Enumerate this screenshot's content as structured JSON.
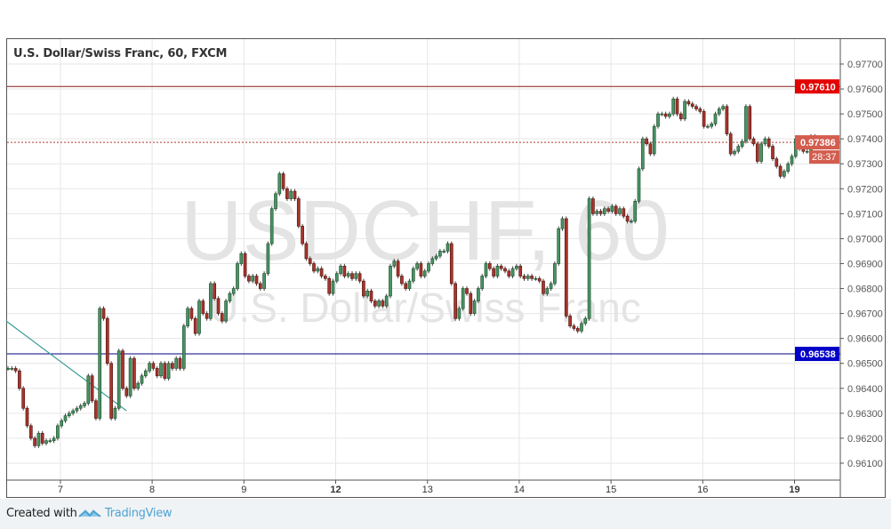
{
  "header": {
    "title": "U.S. Dollar/Swiss Franc, 60, FXCM"
  },
  "watermark": {
    "symbol": "USDCHF, 60",
    "name": "U.S. Dollar/Swiss Franc"
  },
  "footer": {
    "created_with": "Created with",
    "brand": "TradingView",
    "brand_color": "#4fa3d1"
  },
  "chart_data": {
    "type": "candlestick",
    "interval": "60",
    "ylim": [
      0.9605,
      0.9778
    ],
    "yticks": [
      "0.97700",
      "0.97600",
      "0.97500",
      "0.97400",
      "0.97300",
      "0.97200",
      "0.97100",
      "0.97000",
      "0.96900",
      "0.96800",
      "0.96700",
      "0.96600",
      "0.96500",
      "0.96400",
      "0.96300",
      "0.96200",
      "0.96100"
    ],
    "xticks": [
      "7",
      "8",
      "9",
      "12",
      "13",
      "14",
      "15",
      "16",
      "19"
    ],
    "grid": true,
    "first_open": 0.9648,
    "closes": [
      0.9648,
      0.9648,
      0.9647,
      0.964,
      0.9632,
      0.9625,
      0.962,
      0.9617,
      0.9622,
      0.9618,
      0.9619,
      0.9619,
      0.962,
      0.9625,
      0.9627,
      0.9629,
      0.963,
      0.9631,
      0.9632,
      0.9633,
      0.9634,
      0.9645,
      0.9635,
      0.9628,
      0.9672,
      0.9668,
      0.965,
      0.9628,
      0.9632,
      0.9655,
      0.964,
      0.9637,
      0.9652,
      0.964,
      0.9642,
      0.9645,
      0.9647,
      0.965,
      0.9648,
      0.9645,
      0.965,
      0.9644,
      0.965,
      0.9648,
      0.9652,
      0.9648,
      0.9665,
      0.9672,
      0.9668,
      0.9662,
      0.9675,
      0.967,
      0.9668,
      0.9682,
      0.9676,
      0.967,
      0.9667,
      0.9675,
      0.9678,
      0.968,
      0.969,
      0.9694,
      0.9685,
      0.9683,
      0.9685,
      0.9682,
      0.968,
      0.9686,
      0.9698,
      0.9712,
      0.9718,
      0.9726,
      0.972,
      0.9716,
      0.9719,
      0.9716,
      0.9705,
      0.9698,
      0.9692,
      0.969,
      0.9687,
      0.9688,
      0.9685,
      0.9684,
      0.9678,
      0.9683,
      0.9686,
      0.9689,
      0.9685,
      0.9686,
      0.9684,
      0.9686,
      0.9683,
      0.9677,
      0.9679,
      0.9675,
      0.9673,
      0.9675,
      0.9673,
      0.9677,
      0.9689,
      0.9691,
      0.9685,
      0.9682,
      0.968,
      0.9683,
      0.9688,
      0.969,
      0.9685,
      0.9687,
      0.969,
      0.9692,
      0.9693,
      0.9695,
      0.9695,
      0.9698,
      0.9682,
      0.9668,
      0.9672,
      0.968,
      0.9678,
      0.967,
      0.9675,
      0.968,
      0.9685,
      0.969,
      0.9688,
      0.9685,
      0.9689,
      0.9688,
      0.9687,
      0.9685,
      0.9688,
      0.9689,
      0.9685,
      0.9684,
      0.9685,
      0.9684,
      0.9684,
      0.9683,
      0.9678,
      0.968,
      0.9682,
      0.969,
      0.9704,
      0.9708,
      0.9669,
      0.9665,
      0.9664,
      0.9663,
      0.9666,
      0.9668,
      0.9716,
      0.971,
      0.9711,
      0.971,
      0.9712,
      0.9711,
      0.9713,
      0.971,
      0.9712,
      0.9709,
      0.9707,
      0.9707,
      0.9715,
      0.9728,
      0.974,
      0.9738,
      0.9734,
      0.9745,
      0.975,
      0.975,
      0.9749,
      0.975,
      0.9756,
      0.975,
      0.9748,
      0.9755,
      0.9754,
      0.9753,
      0.9752,
      0.9751,
      0.9745,
      0.9745,
      0.9746,
      0.975,
      0.9752,
      0.9753,
      0.9742,
      0.9734,
      0.9735,
      0.9737,
      0.9739,
      0.9753,
      0.974,
      0.9738,
      0.9731,
      0.9738,
      0.974,
      0.9737,
      0.9732,
      0.9729,
      0.9725,
      0.9727,
      0.973,
      0.9733,
      0.974,
      0.9736,
      0.9735,
      0.9735,
      0.9741,
      0.9739,
      0.97386
    ],
    "up_color": "#4a9466",
    "down_color": "#a8352c",
    "levels": [
      {
        "price": 0.9761,
        "label": "0.97610",
        "color": "#8b1a1a",
        "label_bg": "#e30000",
        "style": "solid"
      },
      {
        "price": 0.97386,
        "label": "0.97386",
        "color": "#b03a2e",
        "label_bg": "#d35d4e",
        "style": "dotted",
        "countdown": "28:37"
      },
      {
        "price": 0.96538,
        "label": "0.96538",
        "color": "#000080",
        "label_bg": "#0000c8",
        "style": "solid"
      }
    ],
    "trendline": {
      "from": {
        "candle": -0.5,
        "price": 0.9667
      },
      "to": {
        "candle": 31,
        "price": 0.9631
      },
      "color": "#3a9e94"
    }
  }
}
